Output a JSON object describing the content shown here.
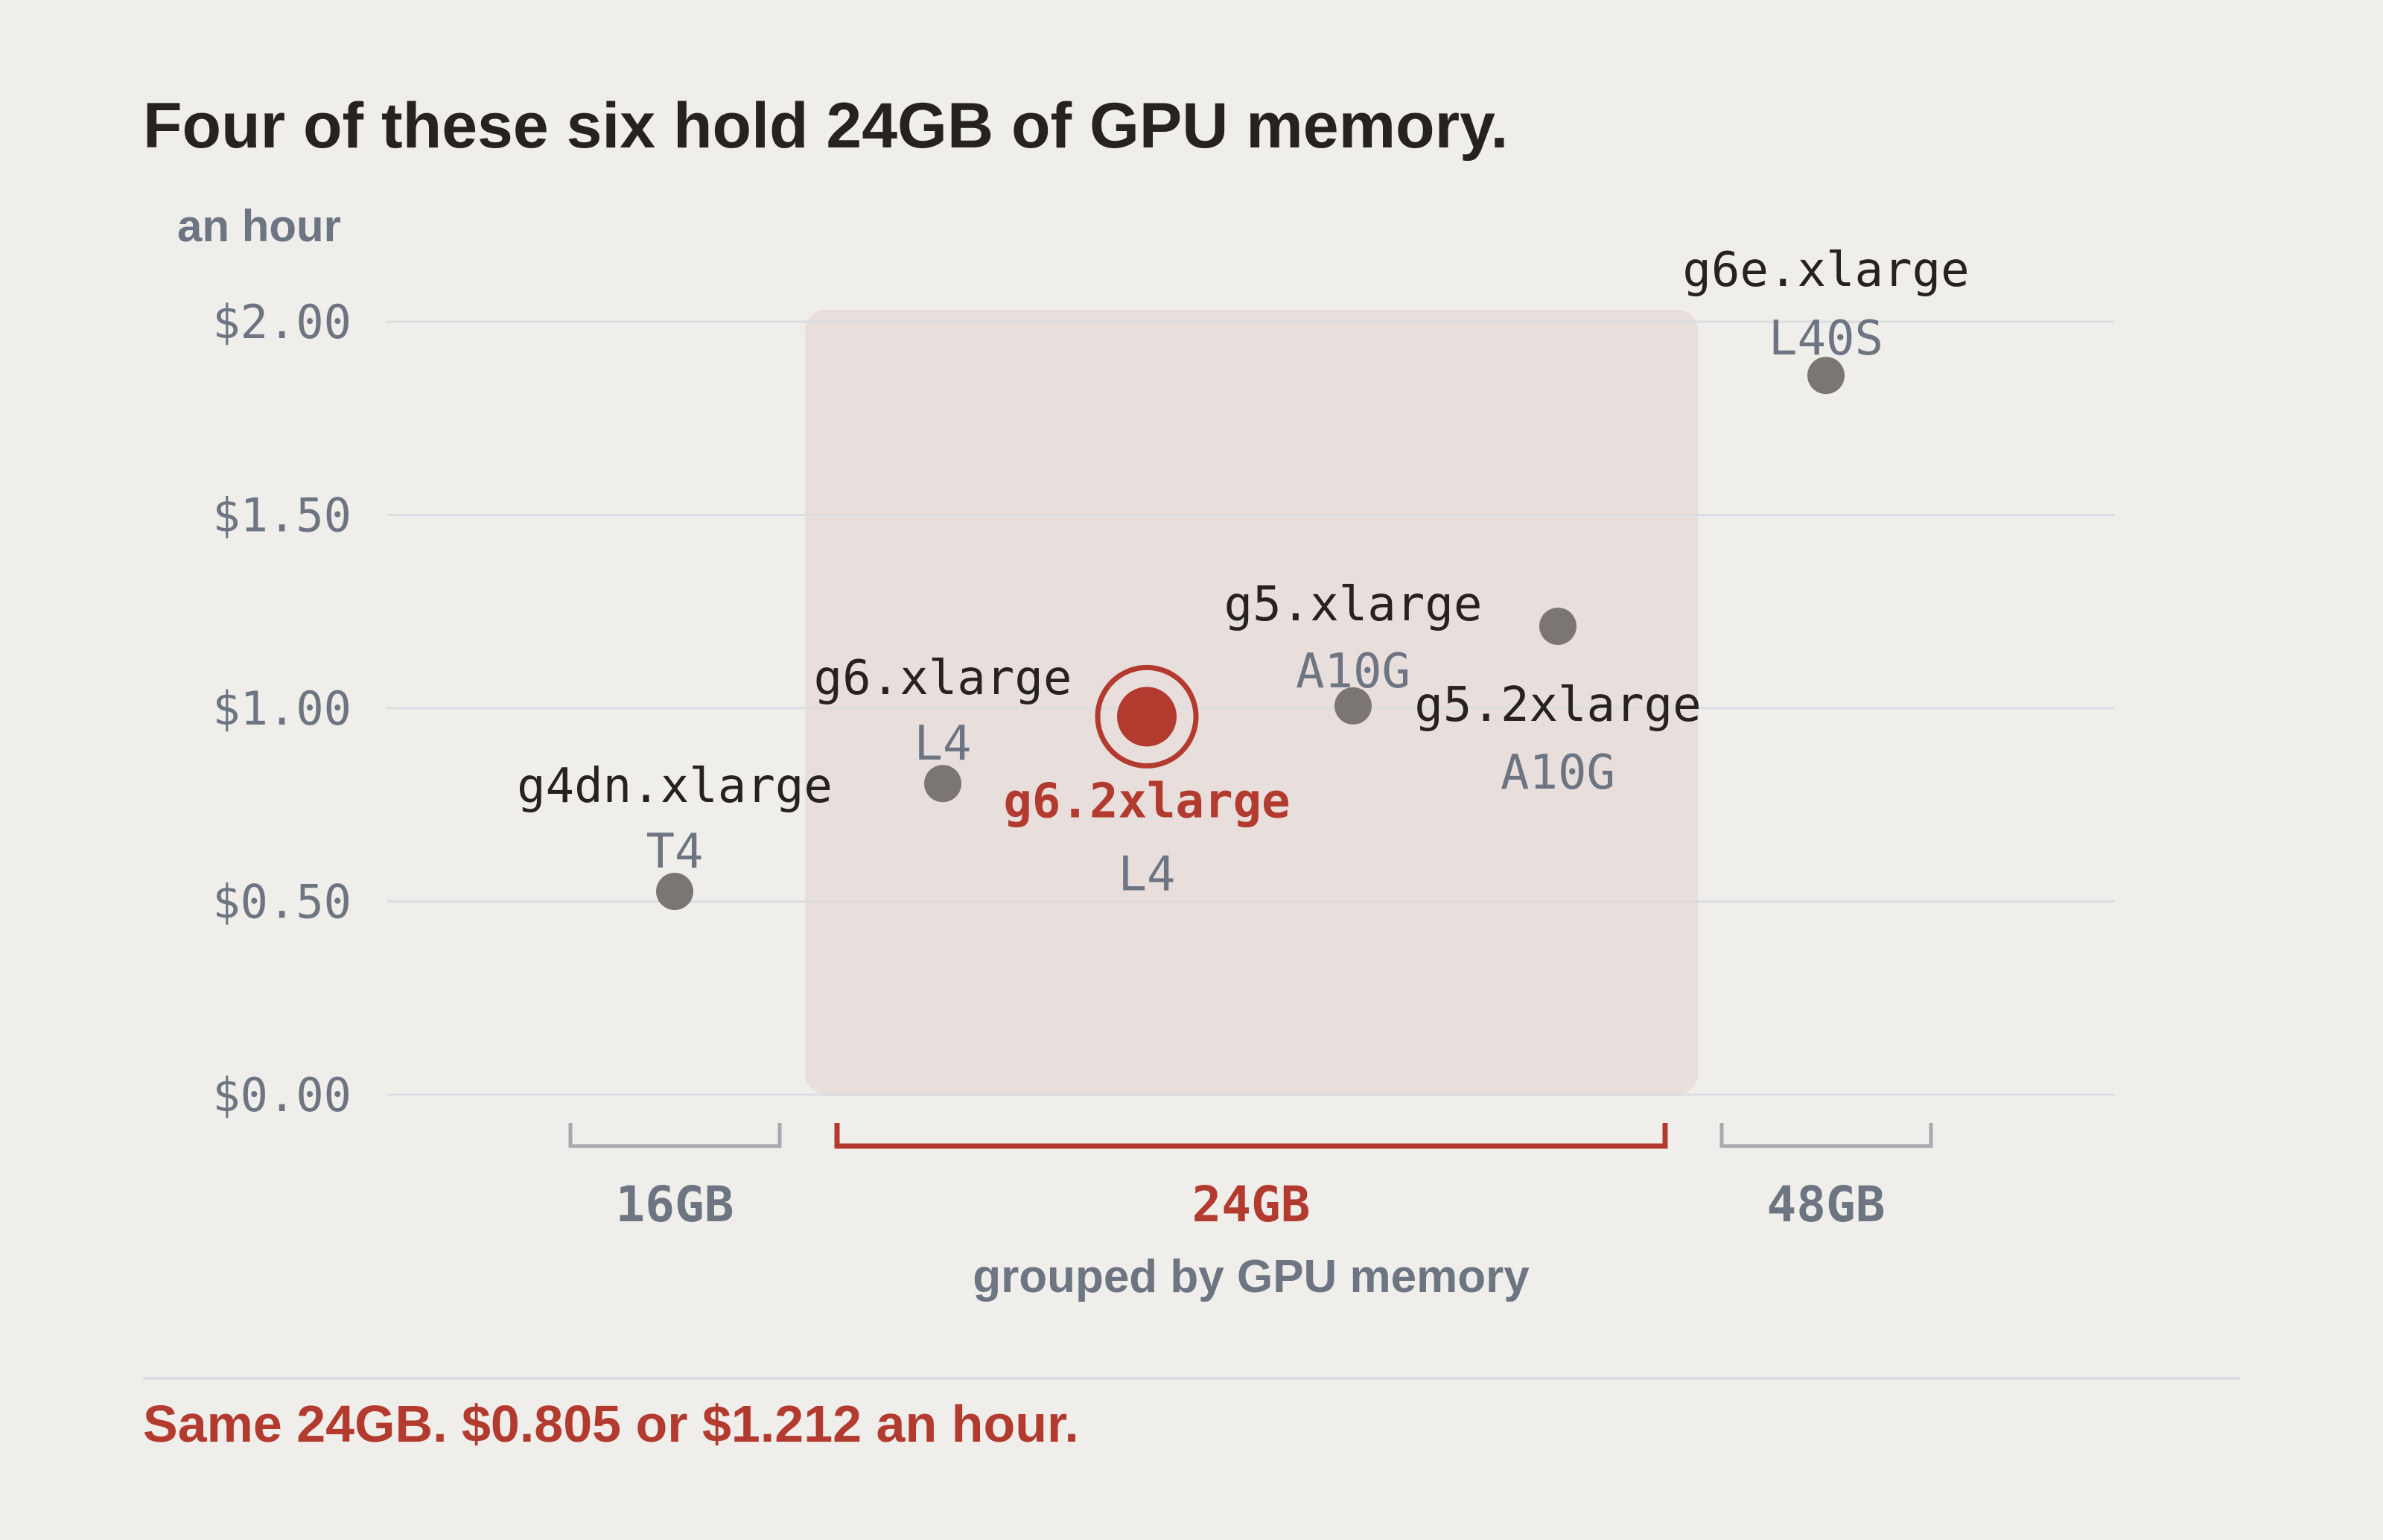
{
  "title": "Four of these six hold 24GB of GPU memory.",
  "footer": "Same 24GB. $0.805 or $1.212 an hour.",
  "chart_data": {
    "type": "scatter",
    "title": "Four of these six hold 24GB of GPU memory.",
    "ylabel": "an hour",
    "xlabel": "grouped by GPU memory",
    "ylim": [
      0,
      2
    ],
    "yticks": [
      {
        "value": 0,
        "label": "$0.00"
      },
      {
        "value": 0.5,
        "label": "$0.50"
      },
      {
        "value": 1,
        "label": "$1.00"
      },
      {
        "value": 1.5,
        "label": "$1.50"
      },
      {
        "value": 2,
        "label": "$2.00"
      }
    ],
    "grid": true,
    "groups": [
      {
        "label": "16GB",
        "highlight": false
      },
      {
        "label": "24GB",
        "highlight": true
      },
      {
        "label": "48GB",
        "highlight": false
      }
    ],
    "points": [
      {
        "instance": "g4dn.xlarge",
        "gpu": "T4",
        "group": "16GB",
        "price": 0.526,
        "highlight": false
      },
      {
        "instance": "g6.xlarge",
        "gpu": "L4",
        "group": "24GB",
        "price": 0.805,
        "highlight": false
      },
      {
        "instance": "g6.2xlarge",
        "gpu": "L4",
        "group": "24GB",
        "price": 0.978,
        "highlight": true
      },
      {
        "instance": "g5.xlarge",
        "gpu": "A10G",
        "group": "24GB",
        "price": 1.006,
        "highlight": false
      },
      {
        "instance": "g5.2xlarge",
        "gpu": "A10G",
        "group": "24GB",
        "price": 1.212,
        "highlight": false
      },
      {
        "instance": "g6e.xlarge",
        "gpu": "L40S",
        "group": "48GB",
        "price": 1.861,
        "highlight": false
      }
    ],
    "colors": {
      "point": "#7b7673",
      "highlight": "#b33a2e",
      "band": "#e8dedb",
      "grid": "#dcdde2",
      "muted": "#6d7482",
      "bracket": "#a6a9b0"
    }
  }
}
